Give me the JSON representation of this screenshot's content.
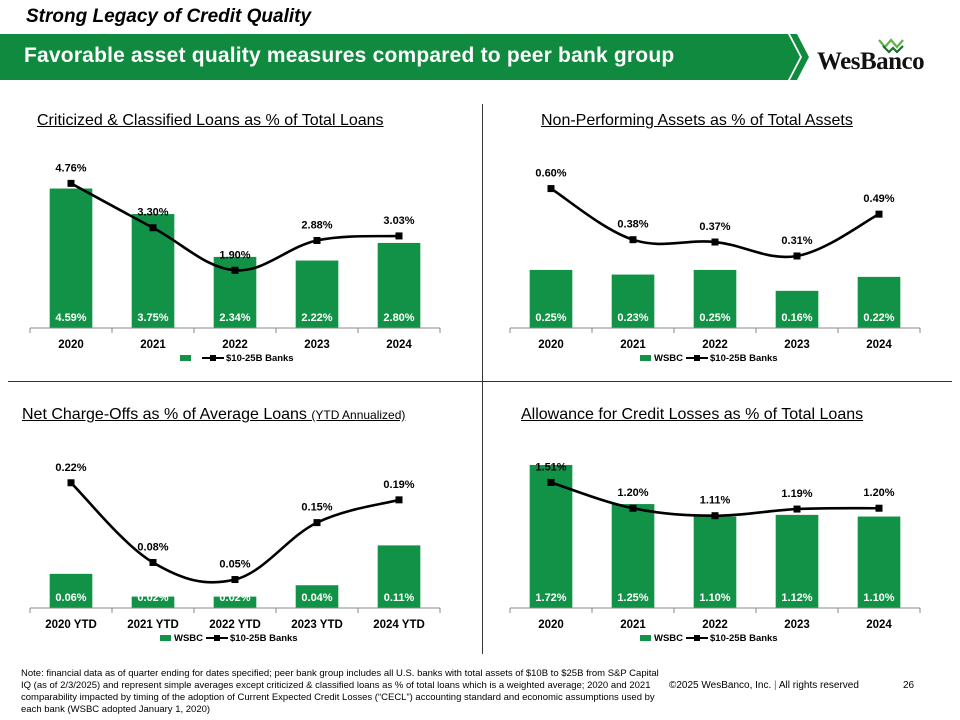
{
  "slide_title": "Strong Legacy of Credit Quality",
  "banner": "Favorable asset quality measures compared to peer bank group",
  "logo": "WesBanco",
  "colors": {
    "green": "#119247",
    "banner": "#0f8a3e",
    "line": "#000000",
    "logo_green": "#5fb246"
  },
  "chart_data": [
    {
      "type": "bar+line",
      "title": "Criticized & Classified Loans as % of Total Loans",
      "title_sub": "",
      "categories": [
        "2020",
        "2021",
        "2022",
        "2023",
        "2024"
      ],
      "series": [
        {
          "name": "",
          "kind": "bar",
          "values": [
            4.59,
            3.75,
            2.34,
            2.22,
            2.8
          ],
          "labels": [
            "4.59%",
            "3.75%",
            "2.34%",
            "2.22%",
            "2.80%"
          ]
        },
        {
          "name": "$10-25B Banks",
          "kind": "line",
          "values": [
            4.76,
            3.3,
            1.9,
            2.88,
            3.03
          ],
          "labels": [
            "4.76%",
            "3.30%",
            "1.90%",
            "2.88%",
            "3.03%"
          ]
        }
      ],
      "ylim": [
        0,
        5.2
      ],
      "legend": "bottom"
    },
    {
      "type": "bar+line",
      "title": "Non-Performing Assets as % of Total Assets",
      "title_sub": "",
      "categories": [
        "2020",
        "2021",
        "2022",
        "2023",
        "2024"
      ],
      "series": [
        {
          "name": "WSBC",
          "kind": "bar",
          "values": [
            0.25,
            0.23,
            0.25,
            0.16,
            0.22
          ],
          "labels": [
            "0.25%",
            "0.23%",
            "0.25%",
            "0.16%",
            "0.22%"
          ]
        },
        {
          "name": "$10-25B Banks",
          "kind": "line",
          "values": [
            0.6,
            0.38,
            0.37,
            0.31,
            0.49
          ],
          "labels": [
            "0.60%",
            "0.38%",
            "0.37%",
            "0.31%",
            "0.49%"
          ]
        }
      ],
      "ylim": [
        0,
        0.68
      ],
      "legend": "bottom"
    },
    {
      "type": "bar+line",
      "title": "Net Charge-Offs as % of Average Loans",
      "title_sub": "(YTD Annualized)",
      "categories": [
        "2020 YTD",
        "2021 YTD",
        "2022 YTD",
        "2023 YTD",
        "2024 YTD"
      ],
      "series": [
        {
          "name": "WSBC",
          "kind": "bar",
          "values": [
            0.06,
            0.02,
            0.02,
            0.04,
            0.11
          ],
          "labels": [
            "0.06%",
            "0.02%",
            "0.02%",
            "0.04%",
            "0.11%"
          ]
        },
        {
          "name": "$10-25B Banks",
          "kind": "line",
          "values": [
            0.22,
            0.08,
            0.05,
            0.15,
            0.19
          ],
          "labels": [
            "0.22%",
            "0.08%",
            "0.05%",
            "0.15%",
            "0.19%"
          ]
        }
      ],
      "ylim": [
        0,
        0.26
      ],
      "legend": "bottom"
    },
    {
      "type": "bar+line",
      "title": "Allowance for Credit Losses as % of Total Loans",
      "title_sub": "",
      "categories": [
        "2020",
        "2021",
        "2022",
        "2023",
        "2024"
      ],
      "series": [
        {
          "name": "WSBC",
          "kind": "bar",
          "values": [
            1.72,
            1.25,
            1.1,
            1.12,
            1.1
          ],
          "labels": [
            "1.72%",
            "1.25%",
            "1.10%",
            "1.12%",
            "1.10%"
          ]
        },
        {
          "name": "$10-25B Banks",
          "kind": "line",
          "values": [
            1.51,
            1.2,
            1.11,
            1.19,
            1.2
          ],
          "labels": [
            "1.51%",
            "1.20%",
            "1.11%",
            "1.19%",
            "1.20%"
          ]
        }
      ],
      "ylim": [
        0,
        1.78
      ],
      "legend": "bottom"
    }
  ],
  "footer": {
    "note": "Note: financial data as of quarter ending for dates specified; peer bank group includes all U.S. banks with total assets of $10B to $25B from S&P Capital IQ (as of 2/3/2025) and represent simple averages except criticized & classified loans as % of total loans which is a weighted average; 2020 and 2021 comparability impacted by timing of the adoption of Current Expected Credit Losses (“CECL”) accounting standard and economic assumptions used by each bank (WSBC adopted January 1, 2020)",
    "copyright": "©2025 WesBanco, Inc.",
    "separator": "|",
    "rights": "All rights reserved",
    "page": "26"
  }
}
